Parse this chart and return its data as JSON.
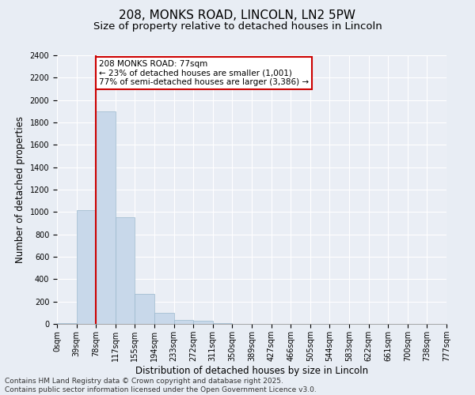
{
  "title_line1": "208, MONKS ROAD, LINCOLN, LN2 5PW",
  "title_line2": "Size of property relative to detached houses in Lincoln",
  "xlabel": "Distribution of detached houses by size in Lincoln",
  "ylabel": "Number of detached properties",
  "bin_labels": [
    "0sqm",
    "39sqm",
    "78sqm",
    "117sqm",
    "155sqm",
    "194sqm",
    "233sqm",
    "272sqm",
    "311sqm",
    "350sqm",
    "389sqm",
    "427sqm",
    "466sqm",
    "505sqm",
    "544sqm",
    "583sqm",
    "622sqm",
    "661sqm",
    "700sqm",
    "738sqm",
    "777sqm"
  ],
  "bar_values": [
    5,
    1020,
    1900,
    950,
    270,
    100,
    35,
    25,
    10,
    0,
    0,
    0,
    0,
    0,
    0,
    0,
    0,
    0,
    0,
    0
  ],
  "bar_color": "#c8d8ea",
  "bar_edge_color": "#9ab8cc",
  "red_line_x": 2,
  "annotation_text": "208 MONKS ROAD: 77sqm\n← 23% of detached houses are smaller (1,001)\n77% of semi-detached houses are larger (3,386) →",
  "annotation_box_color": "#ffffff",
  "annotation_box_edge": "#cc0000",
  "ylim": [
    0,
    2400
  ],
  "yticks": [
    0,
    200,
    400,
    600,
    800,
    1000,
    1200,
    1400,
    1600,
    1800,
    2000,
    2200,
    2400
  ],
  "footer_line1": "Contains HM Land Registry data © Crown copyright and database right 2025.",
  "footer_line2": "Contains public sector information licensed under the Open Government Licence v3.0.",
  "bg_color": "#e8edf4",
  "plot_bg_color": "#eaeef5",
  "grid_color": "#ffffff",
  "title_fontsize": 11,
  "subtitle_fontsize": 9.5,
  "axis_label_fontsize": 8.5,
  "tick_fontsize": 7,
  "annotation_fontsize": 7.5,
  "footer_fontsize": 6.5
}
